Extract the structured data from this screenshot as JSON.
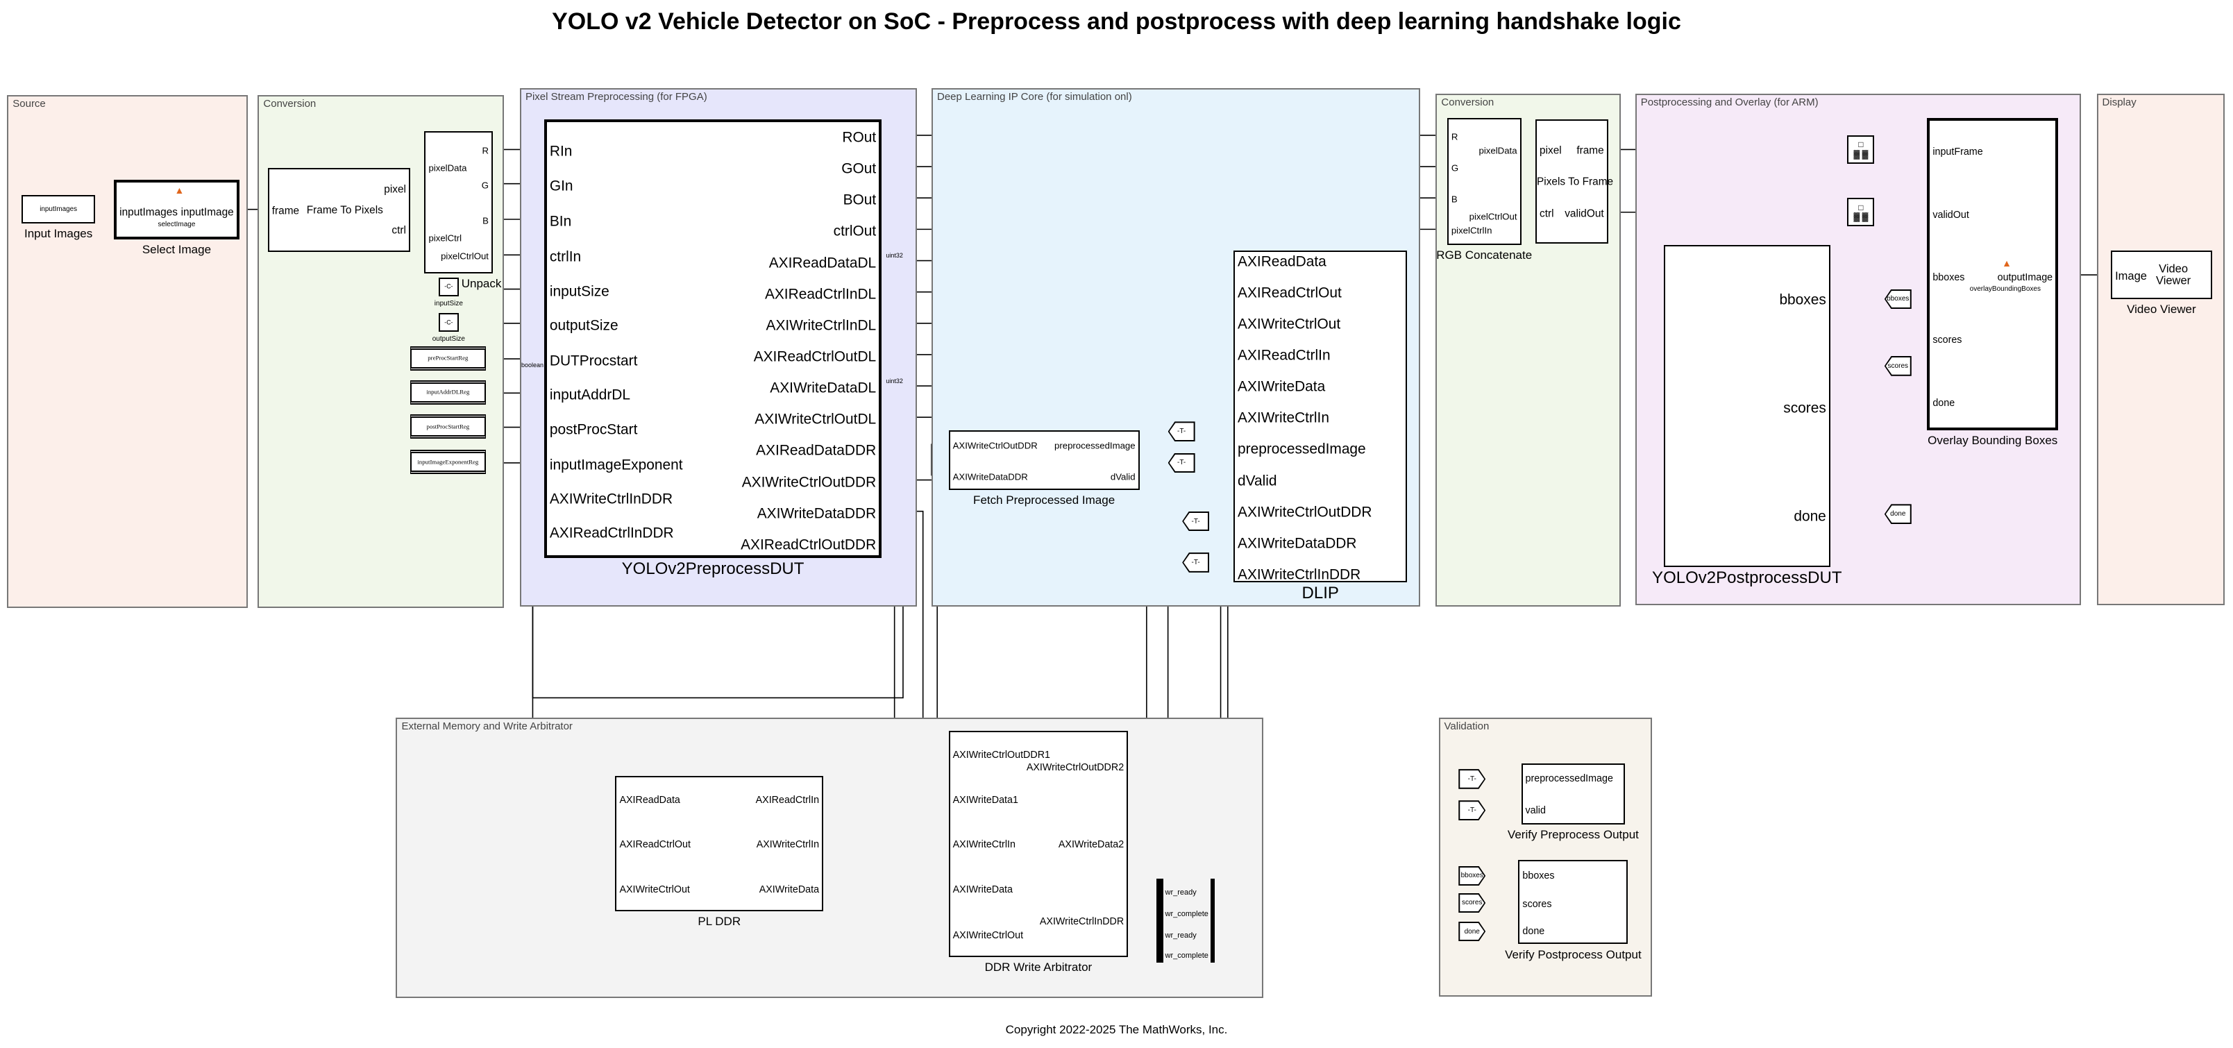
{
  "title": "YOLO v2 Vehicle Detector on SoC - Preprocess and postprocess with deep learning handshake logic",
  "copyright": "Copyright 2022-2025 The MathWorks, Inc.",
  "areas": [
    {
      "title": "Source",
      "color": "#fcefea"
    },
    {
      "title": "Conversion",
      "color": "#f1f7ea"
    },
    {
      "title": "Pixel Stream Preprocessing (for FPGA)",
      "color": "#e6e6fb"
    },
    {
      "title": "Deep Learning IP Core (for simulation onl)",
      "color": "#e6f3fc"
    },
    {
      "title": "Conversion",
      "color": "#f1f7ea"
    },
    {
      "title": "Postprocessing and Overlay (for ARM)",
      "color": "#f6eaf8"
    },
    {
      "title": "Display",
      "color": "#fcefea"
    },
    {
      "title": "External Memory and Write Arbitrator",
      "color": "#f3f3f3"
    },
    {
      "title": "Validation",
      "color": "#f7f3ec"
    }
  ],
  "blocks": {
    "inputImages": {
      "name": "Input Images",
      "center": "inputImages",
      "inputs": [],
      "outputs": []
    },
    "selectImage": {
      "name": "Select Image",
      "sub": "selectImage",
      "inputs": [
        "inputImages"
      ],
      "outputs": [
        "inputImage"
      ],
      "icon": "matlab-function-icon"
    },
    "frameToPixels": {
      "name": "",
      "center": "Frame To Pixels",
      "inputs": [
        "frame"
      ],
      "outputs": [
        "pixel",
        "ctrl"
      ]
    },
    "unpack": {
      "name": "Unpack",
      "inputs": [
        "pixelData",
        "pixelCtrl"
      ],
      "outputs": [
        "R",
        "G",
        "B",
        "pixelCtrlOut"
      ]
    },
    "inputSize": {
      "name": "inputSize",
      "center": "-C-",
      "inputs": [],
      "outputs": []
    },
    "outputSize": {
      "name": "outputSize",
      "center": "-C-",
      "inputs": [],
      "outputs": []
    },
    "preProcStartReg": {
      "name": "",
      "center": "preProcStartReg",
      "inputs": [],
      "outputs": []
    },
    "inputAddrDLReg": {
      "name": "",
      "center": "inputAddrDLReg",
      "inputs": [],
      "outputs": []
    },
    "postProcStartReg": {
      "name": "",
      "center": "postProcStartReg",
      "inputs": [],
      "outputs": []
    },
    "inputImageExponentReg": {
      "name": "",
      "center": "inputImageExponentReg",
      "inputs": [],
      "outputs": []
    },
    "preDUT": {
      "name": "YOLOv2PreprocessDUT",
      "inputs": [
        "RIn",
        "GIn",
        "BIn",
        "ctrlIn",
        "inputSize",
        "outputSize",
        "DUTProcstart",
        "inputAddrDL",
        "postProcStart",
        "inputImageExponent",
        "AXIWriteCtrlInDDR",
        "AXIReadCtrlInDDR"
      ],
      "outputs": [
        "ROut",
        "GOut",
        "BOut",
        "ctrlOut",
        "AXIReadDataDL",
        "AXIReadCtrlInDL",
        "AXIWriteCtrlInDL",
        "AXIReadCtrlOutDL",
        "AXIWriteDataDL",
        "AXIWriteCtrlOutDL",
        "AXIReadDataDDR",
        "AXIWriteCtrlOutDDR",
        "AXIWriteDataDDR",
        "AXIReadCtrlOutDDR"
      ]
    },
    "dlip": {
      "name": "DLIP",
      "inputs": [
        "AXIReadData",
        "AXIReadCtrlOut",
        "AXIWriteCtrlOut",
        "AXIReadCtrlIn",
        "AXIWriteData",
        "AXIWriteCtrlIn",
        "preprocessedImage",
        "dValid",
        "AXIWriteCtrlOutDDR",
        "AXIWriteDataDDR",
        "AXIWriteCtrlInDDR"
      ],
      "outputs": []
    },
    "fetch": {
      "name": "Fetch Preprocessed Image",
      "inputs": [
        "AXIWriteCtrlOutDDR",
        "AXIWriteDataDDR"
      ],
      "outputs": [
        "preprocessedImage",
        "dValid"
      ]
    },
    "rgbConcat": {
      "name": "RGB Concatenate",
      "inputs": [
        "R",
        "G",
        "B",
        "pixelCtrlIn"
      ],
      "outputs": [
        "pixelData",
        "pixelCtrlOut"
      ]
    },
    "pixelsToFrame": {
      "name": "",
      "center": "Pixels To Frame",
      "inputs": [
        "pixel",
        "ctrl"
      ],
      "outputs": [
        "frame",
        "validOut"
      ]
    },
    "overlay": {
      "name": "Overlay Bounding Boxes",
      "sub": "overlayBoundingBoxes",
      "inputs": [
        "inputFrame",
        "validOut",
        "bboxes",
        "scores",
        "done"
      ],
      "outputs": [
        "outputImage"
      ],
      "icon": "matlab-function-icon"
    },
    "postDUT": {
      "name": "YOLOv2PostprocessDUT",
      "inputs": [],
      "outputs": [
        "bboxes",
        "scores",
        "done"
      ]
    },
    "videoViewer": {
      "name": "Video Viewer",
      "center": "Video Viewer",
      "inputs": [
        "Image"
      ],
      "outputs": []
    },
    "plddr": {
      "name": "PL DDR",
      "inputs": [
        "AXIReadData",
        "AXIReadCtrlOut",
        "AXIWriteCtrlOut"
      ],
      "outputs": [
        "AXIReadCtrlIn",
        "AXIWriteCtrlIn",
        "AXIWriteData"
      ]
    },
    "arbiter": {
      "name": "DDR Write Arbitrator",
      "inputs": [
        "AXIWriteCtrlOutDDR1",
        "AXIWriteData1",
        "AXIWriteCtrlIn",
        "AXIWriteData",
        "AXIWriteCtrlOut"
      ],
      "outputs": [
        "AXIWriteCtrlOutDDR2",
        "AXIWriteData2",
        "AXIWriteCtrlInDDR"
      ]
    },
    "verifyPre": {
      "name": "Verify Preprocess Output",
      "inputs": [
        "preprocessedImage",
        "valid"
      ],
      "outputs": []
    },
    "verifyPost": {
      "name": "Verify Postprocess Output",
      "inputs": [
        "bboxes",
        "scores",
        "done"
      ],
      "outputs": []
    }
  },
  "tags": {
    "dl1": "-T-",
    "dl2": "-T-",
    "dl3": "-T-",
    "dl4": "-T-",
    "gotoBboxes": "bboxes",
    "gotoScores": "scores",
    "gotoDone": "done",
    "vPre1": "-T-",
    "vPre2": "-T-",
    "vBboxes": "bboxes",
    "vScores": "scores",
    "vDone": "done"
  },
  "bus_signals": [
    "wr_ready",
    "wr_complete",
    "wr_ready",
    "wr_complete"
  ],
  "signal_types": {
    "readData": "uint32",
    "start": "boolean",
    "writeData": "uint32"
  }
}
